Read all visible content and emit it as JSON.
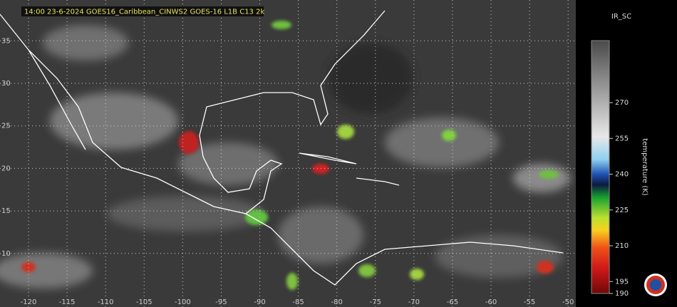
{
  "chart_data": {
    "type": "map",
    "title": "14:00  23-6-2024 GOES16_Caribbean_CINWS2 GOES-16 L1B C13 2k",
    "xlim": [
      -123.7,
      -49.0
    ],
    "ylim": [
      3.7,
      39.8
    ],
    "xticks": [
      -120,
      -115,
      -110,
      -105,
      -100,
      -95,
      -90,
      -85,
      -80,
      -75,
      -70,
      -65,
      -60,
      -55,
      -50
    ],
    "yticks": [
      35,
      30,
      25,
      20,
      15,
      10
    ],
    "grid": true,
    "colorbar": {
      "title": "IR_SC",
      "label": "temperature (K)",
      "lim": [
        190,
        296
      ],
      "ticks": [
        270,
        255,
        240,
        225,
        210,
        195,
        190
      ]
    }
  }
}
